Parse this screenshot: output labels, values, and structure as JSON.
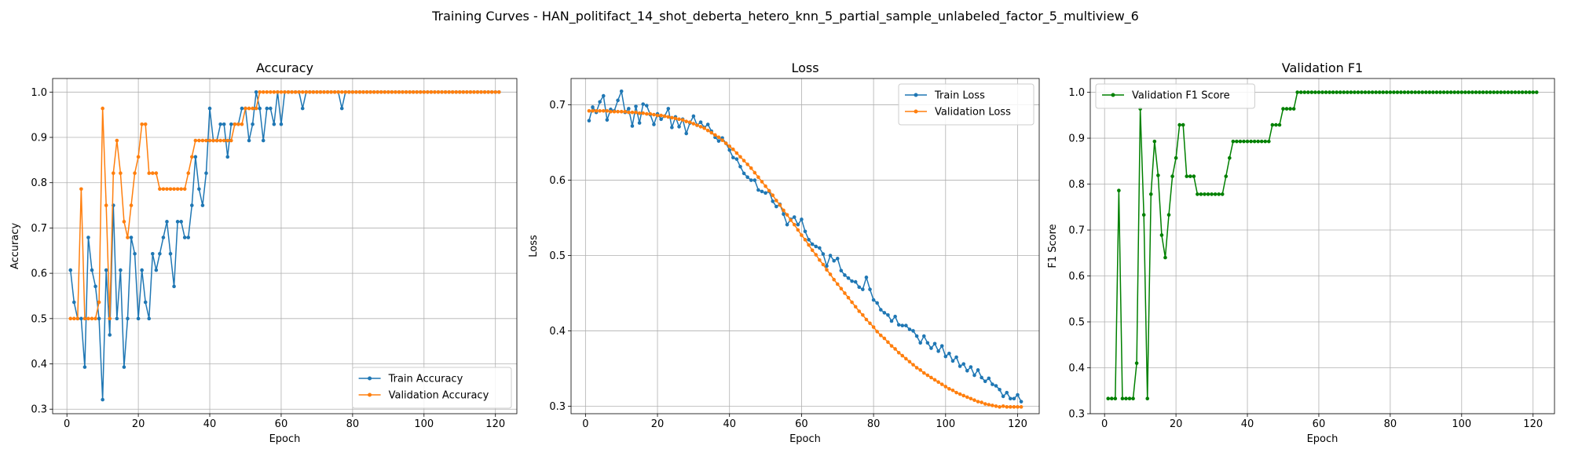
{
  "suptitle": "Training Curves - HAN_politifact_14_shot_deberta_hetero_knn_5_partial_sample_unlabeled_factor_5_multiview_6",
  "colors": {
    "train": "#1f77b4",
    "val": "#ff7f0e",
    "f1": "#008000",
    "grid": "#b0b0b0"
  },
  "chart_data": [
    {
      "type": "line",
      "title": "Accuracy",
      "xlabel": "Epoch",
      "ylabel": "Accuracy",
      "xlim": [
        -4,
        126
      ],
      "ylim": [
        0.29,
        1.03
      ],
      "xticks": [
        0,
        20,
        40,
        60,
        80,
        100,
        120
      ],
      "yticks": [
        0.3,
        0.4,
        0.5,
        0.6,
        0.7,
        0.8,
        0.9,
        1.0
      ],
      "legend_loc": "lower-right",
      "x": [
        1,
        2,
        3,
        4,
        5,
        6,
        7,
        8,
        9,
        10,
        11,
        12,
        13,
        14,
        15,
        16,
        17,
        18,
        19,
        20,
        21,
        22,
        23,
        24,
        25,
        26,
        27,
        28,
        29,
        30,
        31,
        32,
        33,
        34,
        35,
        36,
        37,
        38,
        39,
        40,
        41,
        42,
        43,
        44,
        45,
        46,
        47,
        48,
        49,
        50,
        51,
        52,
        53,
        54,
        55,
        56,
        57,
        58,
        59,
        60,
        61,
        62,
        63,
        64,
        65,
        66,
        67,
        68,
        69,
        70,
        71,
        72,
        73,
        74,
        75,
        76,
        77,
        78,
        79,
        80,
        81,
        82,
        83,
        84,
        85,
        86,
        87,
        88,
        89,
        90,
        91,
        92,
        93,
        94,
        95,
        96,
        97,
        98,
        99,
        100,
        101,
        102,
        103,
        104,
        105,
        106,
        107,
        108,
        109,
        110,
        111,
        112,
        113,
        114,
        115,
        116,
        117,
        118,
        119,
        120,
        121
      ],
      "series": [
        {
          "name": "Train Accuracy",
          "color_key": "train",
          "values": [
            0.607,
            0.536,
            0.5,
            0.5,
            0.393,
            0.679,
            0.607,
            0.571,
            0.5,
            0.321,
            0.607,
            0.464,
            0.75,
            0.5,
            0.607,
            0.393,
            0.5,
            0.679,
            0.643,
            0.5,
            0.607,
            0.536,
            0.5,
            0.643,
            0.607,
            0.643,
            0.679,
            0.714,
            0.643,
            0.571,
            0.714,
            0.714,
            0.679,
            0.679,
            0.75,
            0.857,
            0.786,
            0.75,
            0.821,
            0.964,
            0.893,
            0.893,
            0.929,
            0.929,
            0.857,
            0.929,
            0.929,
            0.929,
            0.964,
            0.964,
            0.893,
            0.929,
            1.0,
            0.964,
            0.893,
            0.964,
            0.964,
            0.929,
            1.0,
            0.929,
            1.0,
            1.0,
            1.0,
            1.0,
            1.0,
            0.964,
            1.0,
            1.0,
            1.0,
            1.0,
            1.0,
            1.0,
            1.0,
            1.0,
            1.0,
            1.0,
            0.964,
            1.0,
            1.0,
            1.0,
            1.0,
            1.0,
            1.0,
            1.0,
            1.0,
            1.0,
            1.0,
            1.0,
            1.0,
            1.0,
            1.0,
            1.0,
            1.0,
            1.0,
            1.0,
            1.0,
            1.0,
            1.0,
            1.0,
            1.0,
            1.0,
            1.0,
            1.0,
            1.0,
            1.0,
            1.0,
            1.0,
            1.0,
            1.0,
            1.0,
            1.0,
            1.0,
            1.0,
            1.0,
            1.0,
            1.0,
            1.0,
            1.0,
            1.0,
            1.0,
            1.0
          ]
        },
        {
          "name": "Validation Accuracy",
          "color_key": "val",
          "values": [
            0.5,
            0.5,
            0.5,
            0.786,
            0.5,
            0.5,
            0.5,
            0.5,
            0.536,
            0.964,
            0.75,
            0.5,
            0.821,
            0.893,
            0.821,
            0.714,
            0.679,
            0.75,
            0.821,
            0.857,
            0.929,
            0.929,
            0.821,
            0.821,
            0.821,
            0.786,
            0.786,
            0.786,
            0.786,
            0.786,
            0.786,
            0.786,
            0.786,
            0.821,
            0.857,
            0.893,
            0.893,
            0.893,
            0.893,
            0.893,
            0.893,
            0.893,
            0.893,
            0.893,
            0.893,
            0.893,
            0.929,
            0.929,
            0.929,
            0.964,
            0.964,
            0.964,
            0.964,
            1.0,
            1.0,
            1.0,
            1.0,
            1.0,
            1.0,
            1.0,
            1.0,
            1.0,
            1.0,
            1.0,
            1.0,
            1.0,
            1.0,
            1.0,
            1.0,
            1.0,
            1.0,
            1.0,
            1.0,
            1.0,
            1.0,
            1.0,
            1.0,
            1.0,
            1.0,
            1.0,
            1.0,
            1.0,
            1.0,
            1.0,
            1.0,
            1.0,
            1.0,
            1.0,
            1.0,
            1.0,
            1.0,
            1.0,
            1.0,
            1.0,
            1.0,
            1.0,
            1.0,
            1.0,
            1.0,
            1.0,
            1.0,
            1.0,
            1.0,
            1.0,
            1.0,
            1.0,
            1.0,
            1.0,
            1.0,
            1.0,
            1.0,
            1.0,
            1.0,
            1.0,
            1.0,
            1.0,
            1.0,
            1.0,
            1.0,
            1.0,
            1.0
          ]
        }
      ]
    },
    {
      "type": "line",
      "title": "Loss",
      "xlabel": "Epoch",
      "ylabel": "Loss",
      "xlim": [
        -4,
        126
      ],
      "ylim": [
        0.29,
        0.735
      ],
      "xticks": [
        0,
        20,
        40,
        60,
        80,
        100,
        120
      ],
      "yticks": [
        0.3,
        0.4,
        0.5,
        0.6,
        0.7
      ],
      "legend_loc": "upper-right",
      "x": [
        1,
        2,
        3,
        4,
        5,
        6,
        7,
        8,
        9,
        10,
        11,
        12,
        13,
        14,
        15,
        16,
        17,
        18,
        19,
        20,
        21,
        22,
        23,
        24,
        25,
        26,
        27,
        28,
        29,
        30,
        31,
        32,
        33,
        34,
        35,
        36,
        37,
        38,
        39,
        40,
        41,
        42,
        43,
        44,
        45,
        46,
        47,
        48,
        49,
        50,
        51,
        52,
        53,
        54,
        55,
        56,
        57,
        58,
        59,
        60,
        61,
        62,
        63,
        64,
        65,
        66,
        67,
        68,
        69,
        70,
        71,
        72,
        73,
        74,
        75,
        76,
        77,
        78,
        79,
        80,
        81,
        82,
        83,
        84,
        85,
        86,
        87,
        88,
        89,
        90,
        91,
        92,
        93,
        94,
        95,
        96,
        97,
        98,
        99,
        100,
        101,
        102,
        103,
        104,
        105,
        106,
        107,
        108,
        109,
        110,
        111,
        112,
        113,
        114,
        115,
        116,
        117,
        118,
        119,
        120,
        121
      ],
      "series": [
        {
          "name": "Train Loss",
          "color_key": "train",
          "values": [
            0.679,
            0.697,
            0.69,
            0.704,
            0.712,
            0.68,
            0.694,
            0.692,
            0.706,
            0.718,
            0.69,
            0.695,
            0.672,
            0.698,
            0.676,
            0.701,
            0.699,
            0.687,
            0.674,
            0.688,
            0.681,
            0.685,
            0.695,
            0.67,
            0.684,
            0.671,
            0.681,
            0.662,
            0.676,
            0.685,
            0.673,
            0.677,
            0.67,
            0.674,
            0.665,
            0.657,
            0.652,
            0.656,
            0.649,
            0.64,
            0.63,
            0.628,
            0.618,
            0.609,
            0.604,
            0.6,
            0.6,
            0.587,
            0.585,
            0.583,
            0.585,
            0.572,
            0.565,
            0.568,
            0.555,
            0.541,
            0.548,
            0.551,
            0.541,
            0.548,
            0.532,
            0.521,
            0.515,
            0.512,
            0.51,
            0.502,
            0.486,
            0.5,
            0.493,
            0.496,
            0.48,
            0.474,
            0.47,
            0.466,
            0.465,
            0.458,
            0.455,
            0.471,
            0.455,
            0.441,
            0.437,
            0.428,
            0.424,
            0.421,
            0.413,
            0.419,
            0.408,
            0.407,
            0.407,
            0.402,
            0.4,
            0.393,
            0.384,
            0.393,
            0.384,
            0.377,
            0.383,
            0.373,
            0.38,
            0.366,
            0.37,
            0.36,
            0.365,
            0.353,
            0.356,
            0.347,
            0.352,
            0.341,
            0.348,
            0.338,
            0.333,
            0.337,
            0.329,
            0.327,
            0.322,
            0.313,
            0.318,
            0.31,
            0.31,
            0.315,
            0.306
          ]
        },
        {
          "name": "Validation Loss",
          "color_key": "val",
          "values": [
            0.692,
            0.692,
            0.692,
            0.692,
            0.692,
            0.692,
            0.691,
            0.691,
            0.691,
            0.691,
            0.691,
            0.69,
            0.69,
            0.69,
            0.689,
            0.689,
            0.688,
            0.688,
            0.687,
            0.686,
            0.686,
            0.685,
            0.684,
            0.683,
            0.682,
            0.681,
            0.68,
            0.678,
            0.677,
            0.675,
            0.673,
            0.671,
            0.669,
            0.666,
            0.663,
            0.66,
            0.657,
            0.653,
            0.649,
            0.645,
            0.641,
            0.636,
            0.631,
            0.626,
            0.621,
            0.616,
            0.61,
            0.604,
            0.598,
            0.592,
            0.586,
            0.58,
            0.573,
            0.567,
            0.56,
            0.554,
            0.547,
            0.541,
            0.534,
            0.527,
            0.521,
            0.514,
            0.507,
            0.501,
            0.494,
            0.488,
            0.481,
            0.475,
            0.468,
            0.462,
            0.456,
            0.45,
            0.444,
            0.438,
            0.432,
            0.426,
            0.421,
            0.415,
            0.41,
            0.405,
            0.399,
            0.394,
            0.39,
            0.385,
            0.38,
            0.376,
            0.371,
            0.367,
            0.363,
            0.359,
            0.355,
            0.351,
            0.348,
            0.344,
            0.341,
            0.338,
            0.335,
            0.332,
            0.329,
            0.326,
            0.323,
            0.321,
            0.318,
            0.316,
            0.314,
            0.312,
            0.31,
            0.308,
            0.306,
            0.305,
            0.303,
            0.302,
            0.301,
            0.3,
            0.299,
            0.3,
            0.299,
            0.299,
            0.299,
            0.299,
            0.299
          ]
        }
      ]
    },
    {
      "type": "line",
      "title": "Validation F1",
      "xlabel": "Epoch",
      "ylabel": "F1 Score",
      "xlim": [
        -4,
        126
      ],
      "ylim": [
        0.3,
        1.03
      ],
      "xticks": [
        0,
        20,
        40,
        60,
        80,
        100,
        120
      ],
      "yticks": [
        0.3,
        0.4,
        0.5,
        0.6,
        0.7,
        0.8,
        0.9,
        1.0
      ],
      "legend_loc": "upper-left",
      "x": [
        1,
        2,
        3,
        4,
        5,
        6,
        7,
        8,
        9,
        10,
        11,
        12,
        13,
        14,
        15,
        16,
        17,
        18,
        19,
        20,
        21,
        22,
        23,
        24,
        25,
        26,
        27,
        28,
        29,
        30,
        31,
        32,
        33,
        34,
        35,
        36,
        37,
        38,
        39,
        40,
        41,
        42,
        43,
        44,
        45,
        46,
        47,
        48,
        49,
        50,
        51,
        52,
        53,
        54,
        55,
        56,
        57,
        58,
        59,
        60,
        61,
        62,
        63,
        64,
        65,
        66,
        67,
        68,
        69,
        70,
        71,
        72,
        73,
        74,
        75,
        76,
        77,
        78,
        79,
        80,
        81,
        82,
        83,
        84,
        85,
        86,
        87,
        88,
        89,
        90,
        91,
        92,
        93,
        94,
        95,
        96,
        97,
        98,
        99,
        100,
        101,
        102,
        103,
        104,
        105,
        106,
        107,
        108,
        109,
        110,
        111,
        112,
        113,
        114,
        115,
        116,
        117,
        118,
        119,
        120,
        121
      ],
      "series": [
        {
          "name": "Validation F1 Score",
          "color_key": "f1",
          "values": [
            0.333,
            0.333,
            0.333,
            0.786,
            0.333,
            0.333,
            0.333,
            0.333,
            0.41,
            0.964,
            0.733,
            0.333,
            0.778,
            0.893,
            0.819,
            0.689,
            0.64,
            0.733,
            0.817,
            0.857,
            0.929,
            0.929,
            0.817,
            0.817,
            0.817,
            0.778,
            0.778,
            0.778,
            0.778,
            0.778,
            0.778,
            0.778,
            0.778,
            0.817,
            0.857,
            0.893,
            0.893,
            0.893,
            0.893,
            0.893,
            0.893,
            0.893,
            0.893,
            0.893,
            0.893,
            0.893,
            0.929,
            0.929,
            0.929,
            0.964,
            0.964,
            0.964,
            0.964,
            1.0,
            1.0,
            1.0,
            1.0,
            1.0,
            1.0,
            1.0,
            1.0,
            1.0,
            1.0,
            1.0,
            1.0,
            1.0,
            1.0,
            1.0,
            1.0,
            1.0,
            1.0,
            1.0,
            1.0,
            1.0,
            1.0,
            1.0,
            1.0,
            1.0,
            1.0,
            1.0,
            1.0,
            1.0,
            1.0,
            1.0,
            1.0,
            1.0,
            1.0,
            1.0,
            1.0,
            1.0,
            1.0,
            1.0,
            1.0,
            1.0,
            1.0,
            1.0,
            1.0,
            1.0,
            1.0,
            1.0,
            1.0,
            1.0,
            1.0,
            1.0,
            1.0,
            1.0,
            1.0,
            1.0,
            1.0,
            1.0,
            1.0,
            1.0,
            1.0,
            1.0,
            1.0,
            1.0,
            1.0,
            1.0,
            1.0,
            1.0,
            1.0
          ]
        }
      ]
    }
  ]
}
